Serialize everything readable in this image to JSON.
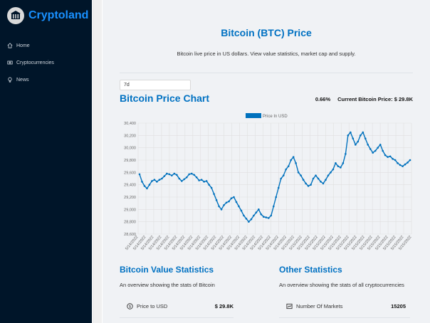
{
  "app": {
    "name": "Cryptoland"
  },
  "sidebar": {
    "items": [
      {
        "label": "Home",
        "icon": "home-icon"
      },
      {
        "label": "Cryptocurrencies",
        "icon": "money-icon"
      },
      {
        "label": "News",
        "icon": "bulb-icon"
      }
    ]
  },
  "header": {
    "title": "Bitcoin (BTC) Price",
    "subtitle": "Bitcoin live price in US dollars. View value statistics, market cap and supply."
  },
  "timeframe": {
    "selected": "7d"
  },
  "chart_header": {
    "title": "Bitcoin Price Chart",
    "change": "0.66%",
    "current_price": "Current Bitcoin Price: $ 29.8K"
  },
  "chart_data": {
    "type": "line",
    "legend": "Price In USD",
    "legend_position": "top",
    "series_color": "#0071bd",
    "grid": true,
    "ylim": [
      28600,
      30400
    ],
    "yticks": [
      28600,
      28800,
      29000,
      29200,
      29400,
      29600,
      29800,
      30000,
      30200,
      30400
    ],
    "tick_labels": [
      "5/14/2022",
      "5/14/2022",
      "5/14/2022",
      "5/14/2022",
      "5/14/2022",
      "5/14/2022",
      "5/14/2022",
      "5/14/2022",
      "5/14/2022",
      "5/14/2022",
      "5/14/2022",
      "5/14/2022",
      "5/14/2022",
      "5/14/2022",
      "5/14/2022",
      "5/14/2022",
      "5/14/2022",
      "5/14/2022",
      "5/14/2022",
      "5/14/2022",
      "5/15/2022",
      "5/15/2022",
      "5/15/2022",
      "5/15/2022",
      "5/15/2022",
      "5/15/2022",
      "5/15/2022",
      "5/15/2022",
      "5/15/2022",
      "5/15/2022",
      "5/15/2022",
      "5/15/2022",
      "5/15/2022",
      "5/15/2022",
      "5/15/2022",
      "5/15/2022"
    ],
    "values": [
      29570,
      29450,
      29380,
      29340,
      29400,
      29460,
      29480,
      29450,
      29480,
      29500,
      29540,
      29580,
      29570,
      29550,
      29580,
      29560,
      29500,
      29460,
      29490,
      29520,
      29570,
      29580,
      29560,
      29520,
      29470,
      29480,
      29450,
      29460,
      29400,
      29350,
      29250,
      29150,
      29050,
      29000,
      29070,
      29110,
      29130,
      29180,
      29200,
      29120,
      29050,
      28980,
      28900,
      28850,
      28800,
      28840,
      28900,
      28950,
      29000,
      28920,
      28880,
      28870,
      28860,
      28900,
      29050,
      29200,
      29350,
      29500,
      29550,
      29650,
      29700,
      29800,
      29850,
      29750,
      29600,
      29550,
      29480,
      29420,
      29380,
      29400,
      29500,
      29550,
      29500,
      29450,
      29420,
      29480,
      29550,
      29600,
      29650,
      29750,
      29700,
      29680,
      29750,
      29900,
      30200,
      30250,
      30150,
      30050,
      30100,
      30200,
      30250,
      30150,
      30050,
      29980,
      29920,
      29950,
      30000,
      30050,
      29950,
      29880,
      29850,
      29860,
      29820,
      29800,
      29750,
      29720,
      29700,
      29730,
      29760,
      29800
    ]
  },
  "value_stats": {
    "title": "Bitcoin Value Statistics",
    "subtitle": "An overview showing the stats of Bitcoin",
    "rows": [
      {
        "label": "Price to USD",
        "value": "$ 29.8K",
        "icon": "dollar-icon"
      }
    ]
  },
  "other_stats": {
    "title": "Other Statistics",
    "subtitle": "An overview showing the stats of all cryptocurrencies",
    "rows": [
      {
        "label": "Number Of Markets",
        "value": "15205",
        "icon": "fund-icon"
      }
    ]
  }
}
